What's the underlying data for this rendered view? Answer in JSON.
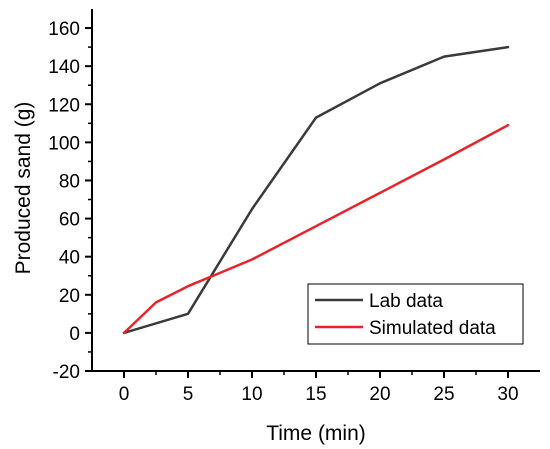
{
  "chart_data": {
    "type": "line",
    "title": "",
    "xlabel": "Time (min)",
    "ylabel": "Produced sand (g)",
    "xlim": [
      -2.5,
      32.5
    ],
    "ylim": [
      -20,
      170
    ],
    "xticks": [
      0,
      5,
      10,
      15,
      20,
      25,
      30
    ],
    "xtick_labels": [
      "0",
      "5",
      "10",
      "15",
      "20",
      "25",
      "30"
    ],
    "yticks": [
      -20,
      0,
      20,
      40,
      60,
      80,
      100,
      120,
      140,
      160
    ],
    "ytick_labels": [
      "-20",
      "0",
      "20",
      "40",
      "60",
      "80",
      "100",
      "120",
      "140",
      "160"
    ],
    "grid": false,
    "legend_position": "bottom-right",
    "series": [
      {
        "name": "Lab data",
        "color": "#3a3a3a",
        "x": [
          0,
          5,
          10,
          15,
          20,
          25,
          30
        ],
        "y": [
          0,
          10,
          65,
          113,
          131,
          145,
          150
        ]
      },
      {
        "name": "Simulated data",
        "color": "#e8232a",
        "x": [
          0,
          2.5,
          5,
          7.5,
          10,
          15,
          20,
          25,
          30
        ],
        "y": [
          0,
          16,
          24.5,
          31.5,
          38.5,
          56,
          73.5,
          91,
          109
        ]
      }
    ]
  }
}
